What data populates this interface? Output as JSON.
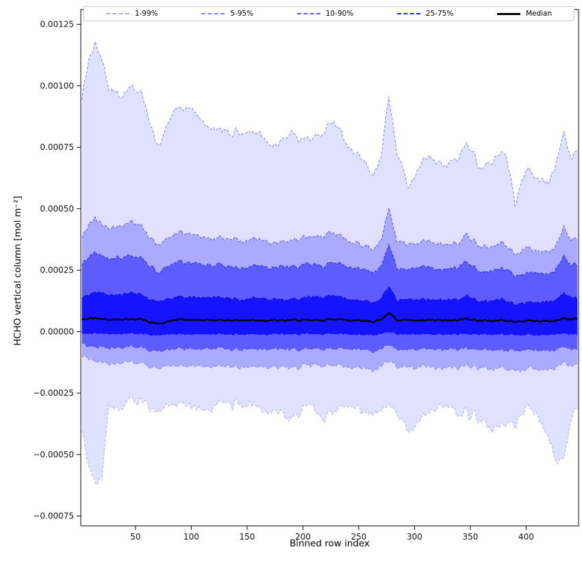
{
  "chart_data": {
    "type": "area",
    "title": "",
    "xlabel": "Binned row index",
    "ylabel": "HCHO vertical column [mol m⁻²]",
    "xlim": [
      1,
      447
    ],
    "ylim": [
      -0.00079,
      0.00131
    ],
    "x_start": 2,
    "x_end": 446,
    "grid": false,
    "legend_position": "top",
    "legend": [
      {
        "label": "1-99%",
        "color": "rgba(0,0,255,0.35)",
        "dash": true,
        "width": 2
      },
      {
        "label": "5-95%",
        "color": "rgba(0,0,255,0.5)",
        "dash": true,
        "width": 2
      },
      {
        "label": "10-90%",
        "color": "rgba(0,0,255,0.65)",
        "dash": true,
        "width": 2
      },
      {
        "label": "25-75%",
        "color": "rgba(0,0,255,0.9)",
        "dash": true,
        "width": 2
      },
      {
        "label": "Median",
        "color": "#000000",
        "dash": false,
        "width": 3
      }
    ],
    "x_ticks": [
      {
        "v": 50,
        "label": "50"
      },
      {
        "v": 100,
        "label": "100"
      },
      {
        "v": 150,
        "label": "150"
      },
      {
        "v": 200,
        "label": "200"
      },
      {
        "v": 250,
        "label": "250"
      },
      {
        "v": 300,
        "label": "300"
      },
      {
        "v": 350,
        "label": "350"
      },
      {
        "v": 400,
        "label": "400"
      }
    ],
    "y_ticks": [
      {
        "v": 0.00125,
        "label": "0.00125"
      },
      {
        "v": 0.001,
        "label": "0.00100"
      },
      {
        "v": 0.00075,
        "label": "0.00075"
      },
      {
        "v": 0.0005,
        "label": "0.00050"
      },
      {
        "v": 0.00025,
        "label": "0.00025"
      },
      {
        "v": 0.0,
        "label": "0.00000"
      },
      {
        "v": -0.00025,
        "label": "−0.00025"
      },
      {
        "v": -0.0005,
        "label": "−0.00050"
      },
      {
        "v": -0.00075,
        "label": "−0.00075"
      }
    ],
    "control_x": [
      2,
      8,
      14,
      20,
      26,
      35,
      45,
      55,
      70,
      85,
      100,
      115,
      130,
      145,
      160,
      175,
      190,
      205,
      220,
      228,
      240,
      252,
      263,
      270,
      277,
      284,
      295,
      310,
      325,
      340,
      347,
      360,
      370,
      382,
      390,
      400,
      410,
      420,
      428,
      434,
      440,
      446
    ],
    "series": {
      "p99": {
        "noise": 3.5e-05,
        "control_y": [
          0.00095,
          0.0011,
          0.00117,
          0.00112,
          0.001,
          0.00096,
          0.001,
          0.00097,
          0.00075,
          0.0009,
          0.00091,
          0.00083,
          0.00082,
          0.0008,
          0.00082,
          0.00075,
          0.0008,
          0.00077,
          0.00082,
          0.00087,
          0.00075,
          0.00072,
          0.00064,
          0.0007,
          0.00097,
          0.00073,
          0.00058,
          0.00071,
          0.00068,
          0.0007,
          0.00078,
          0.00066,
          0.0007,
          0.00074,
          0.00052,
          0.00066,
          0.00063,
          0.0006,
          0.0007,
          0.00082,
          0.0007,
          0.00074
        ]
      },
      "p95": {
        "noise": 2.2e-05,
        "control_y": [
          0.00038,
          0.00043,
          0.00046,
          0.00044,
          0.00042,
          0.00043,
          0.00045,
          0.00043,
          0.00035,
          0.0004,
          0.0004,
          0.00038,
          0.00038,
          0.00037,
          0.00038,
          0.00036,
          0.00037,
          0.00038,
          0.00039,
          0.00041,
          0.00037,
          0.00036,
          0.00034,
          0.00036,
          0.00051,
          0.00037,
          0.00035,
          0.00037,
          0.00035,
          0.00036,
          0.0004,
          0.00034,
          0.00035,
          0.00036,
          0.00031,
          0.00034,
          0.00033,
          0.00032,
          0.00036,
          0.00043,
          0.00037,
          0.00038
        ]
      },
      "p90": {
        "noise": 1.8e-05,
        "control_y": [
          0.00027,
          0.0003,
          0.00032,
          0.00031,
          0.0003,
          0.0003,
          0.00031,
          0.0003,
          0.00024,
          0.00028,
          0.00028,
          0.00027,
          0.00027,
          0.00026,
          0.00027,
          0.00026,
          0.00026,
          0.00027,
          0.00027,
          0.00029,
          0.00026,
          0.00026,
          0.00024,
          0.00026,
          0.00036,
          0.00026,
          0.00025,
          0.00026,
          0.00025,
          0.00026,
          0.00029,
          0.00024,
          0.00025,
          0.00026,
          0.00022,
          0.00024,
          0.00024,
          0.00023,
          0.00026,
          0.00031,
          0.00027,
          0.00028
        ]
      },
      "p75": {
        "noise": 1.2e-05,
        "control_y": [
          0.00014,
          0.00015,
          0.00016,
          0.00016,
          0.00015,
          0.00015,
          0.00016,
          0.00015,
          0.00012,
          0.00014,
          0.00014,
          0.00014,
          0.00014,
          0.00013,
          0.00014,
          0.00013,
          0.00013,
          0.00014,
          0.00014,
          0.00015,
          0.00013,
          0.00013,
          0.00012,
          0.00013,
          0.00019,
          0.00013,
          0.00013,
          0.00013,
          0.00013,
          0.00013,
          0.00015,
          0.00012,
          0.00013,
          0.00013,
          0.00011,
          0.00012,
          0.00012,
          0.00012,
          0.00013,
          0.00016,
          0.00014,
          0.00014
        ]
      },
      "median": {
        "noise": 7e-06,
        "control_y": [
          5e-05,
          5.2e-05,
          5.5e-05,
          5.3e-05,
          5e-05,
          5e-05,
          5.2e-05,
          5e-05,
          3e-05,
          4.8e-05,
          4.8e-05,
          4.7e-05,
          4.7e-05,
          4.6e-05,
          4.7e-05,
          4.6e-05,
          4.6e-05,
          4.7e-05,
          4.7e-05,
          5.2e-05,
          4.6e-05,
          4.6e-05,
          4.2e-05,
          4.6e-05,
          8e-05,
          4.6e-05,
          4.5e-05,
          4.6e-05,
          4.5e-05,
          4.6e-05,
          5.2e-05,
          4.4e-05,
          4.5e-05,
          4.6e-05,
          4e-05,
          4.4e-05,
          4.4e-05,
          4.3e-05,
          4.6e-05,
          5.5e-05,
          5e-05,
          5.2e-05
        ]
      },
      "p25": {
        "noise": 7e-06,
        "control_y": [
          -8e-06,
          -8e-06,
          -7e-06,
          -8e-06,
          -9e-06,
          -9e-06,
          -8e-06,
          -9e-06,
          -1.5e-05,
          -1e-05,
          -1e-05,
          -1e-05,
          -1e-05,
          -1.1e-05,
          -1e-05,
          -1.1e-05,
          -1.1e-05,
          -1e-05,
          -1e-05,
          -8e-06,
          -1.1e-05,
          -1.1e-05,
          -1.3e-05,
          -1.1e-05,
          3e-06,
          -1.1e-05,
          -1.2e-05,
          -1.1e-05,
          -1.2e-05,
          -1.1e-05,
          -8e-06,
          -1.2e-05,
          -1.2e-05,
          -1.1e-05,
          -1.4e-05,
          -1.2e-05,
          -1.2e-05,
          -1.3e-05,
          -1.1e-05,
          -7e-06,
          -1e-05,
          -9e-06
        ]
      },
      "p10": {
        "noise": 1.3e-05,
        "control_y": [
          -5e-05,
          -6e-05,
          -6e-05,
          -6e-05,
          -6.5e-05,
          -6.5e-05,
          -6e-05,
          -6.5e-05,
          -8e-05,
          -7e-05,
          -7e-05,
          -7e-05,
          -7e-05,
          -7.2e-05,
          -7e-05,
          -7.2e-05,
          -7.2e-05,
          -7e-05,
          -7e-05,
          -6.5e-05,
          -7.2e-05,
          -7.2e-05,
          -7.8e-05,
          -7.2e-05,
          -5e-05,
          -7.2e-05,
          -7.5e-05,
          -7.2e-05,
          -7.5e-05,
          -7.2e-05,
          -6.5e-05,
          -7.5e-05,
          -7.5e-05,
          -7.2e-05,
          -8e-05,
          -7.5e-05,
          -7.5e-05,
          -7.8e-05,
          -7.2e-05,
          -6e-05,
          -7e-05,
          -6.8e-05
        ]
      },
      "p5": {
        "noise": 2e-05,
        "control_y": [
          -0.0001,
          -0.00011,
          -0.00012,
          -0.00012,
          -0.00013,
          -0.00013,
          -0.00012,
          -0.00013,
          -0.00015,
          -0.00014,
          -0.00014,
          -0.00014,
          -0.00014,
          -0.000145,
          -0.00014,
          -0.000145,
          -0.000145,
          -0.00014,
          -0.00014,
          -0.00013,
          -0.000145,
          -0.000145,
          -0.000155,
          -0.000145,
          -0.00011,
          -0.000145,
          -0.00015,
          -0.000145,
          -0.00015,
          -0.000145,
          -0.00013,
          -0.00015,
          -0.00015,
          -0.000145,
          -0.00016,
          -0.00015,
          -0.00015,
          -0.000155,
          -0.000145,
          -0.00012,
          -0.00014,
          -0.000135
        ]
      },
      "p1": {
        "noise": 4e-05,
        "control_y": [
          -0.0004,
          -0.00055,
          -0.00062,
          -0.0006,
          -0.00028,
          -0.00032,
          -0.00028,
          -0.00028,
          -0.00032,
          -0.0003,
          -0.0003,
          -0.00032,
          -0.00028,
          -0.0003,
          -0.0003,
          -0.00033,
          -0.00036,
          -0.0003,
          -0.00036,
          -0.00032,
          -0.0003,
          -0.00032,
          -0.00033,
          -0.00034,
          -0.00028,
          -0.00033,
          -0.00042,
          -0.00034,
          -0.0003,
          -0.00034,
          -0.00032,
          -0.00036,
          -0.0004,
          -0.00036,
          -0.00038,
          -0.0003,
          -0.00034,
          -0.00044,
          -0.00054,
          -0.0005,
          -0.00036,
          -0.0003
        ]
      }
    },
    "bands": [
      {
        "label": "1-99%",
        "lower": "p1",
        "upper": "p99",
        "fill": "rgba(0,0,255,0.12)",
        "edge": "rgba(0,0,255,0.45)"
      },
      {
        "label": "5-95%",
        "lower": "p5",
        "upper": "p95",
        "fill": "rgba(0,0,255,0.24)",
        "edge": "rgba(0,0,255,0.55)"
      },
      {
        "label": "10-90%",
        "lower": "p10",
        "upper": "p90",
        "fill": "rgba(0,0,255,0.45)",
        "edge": "rgba(0,0,255,0.7)"
      },
      {
        "label": "25-75%",
        "lower": "p25",
        "upper": "p75",
        "fill": "rgba(0,0,255,0.78)",
        "edge": "rgba(15,15,165,0.95)"
      }
    ],
    "median_style": {
      "color": "#000000",
      "width": 2.4
    }
  }
}
